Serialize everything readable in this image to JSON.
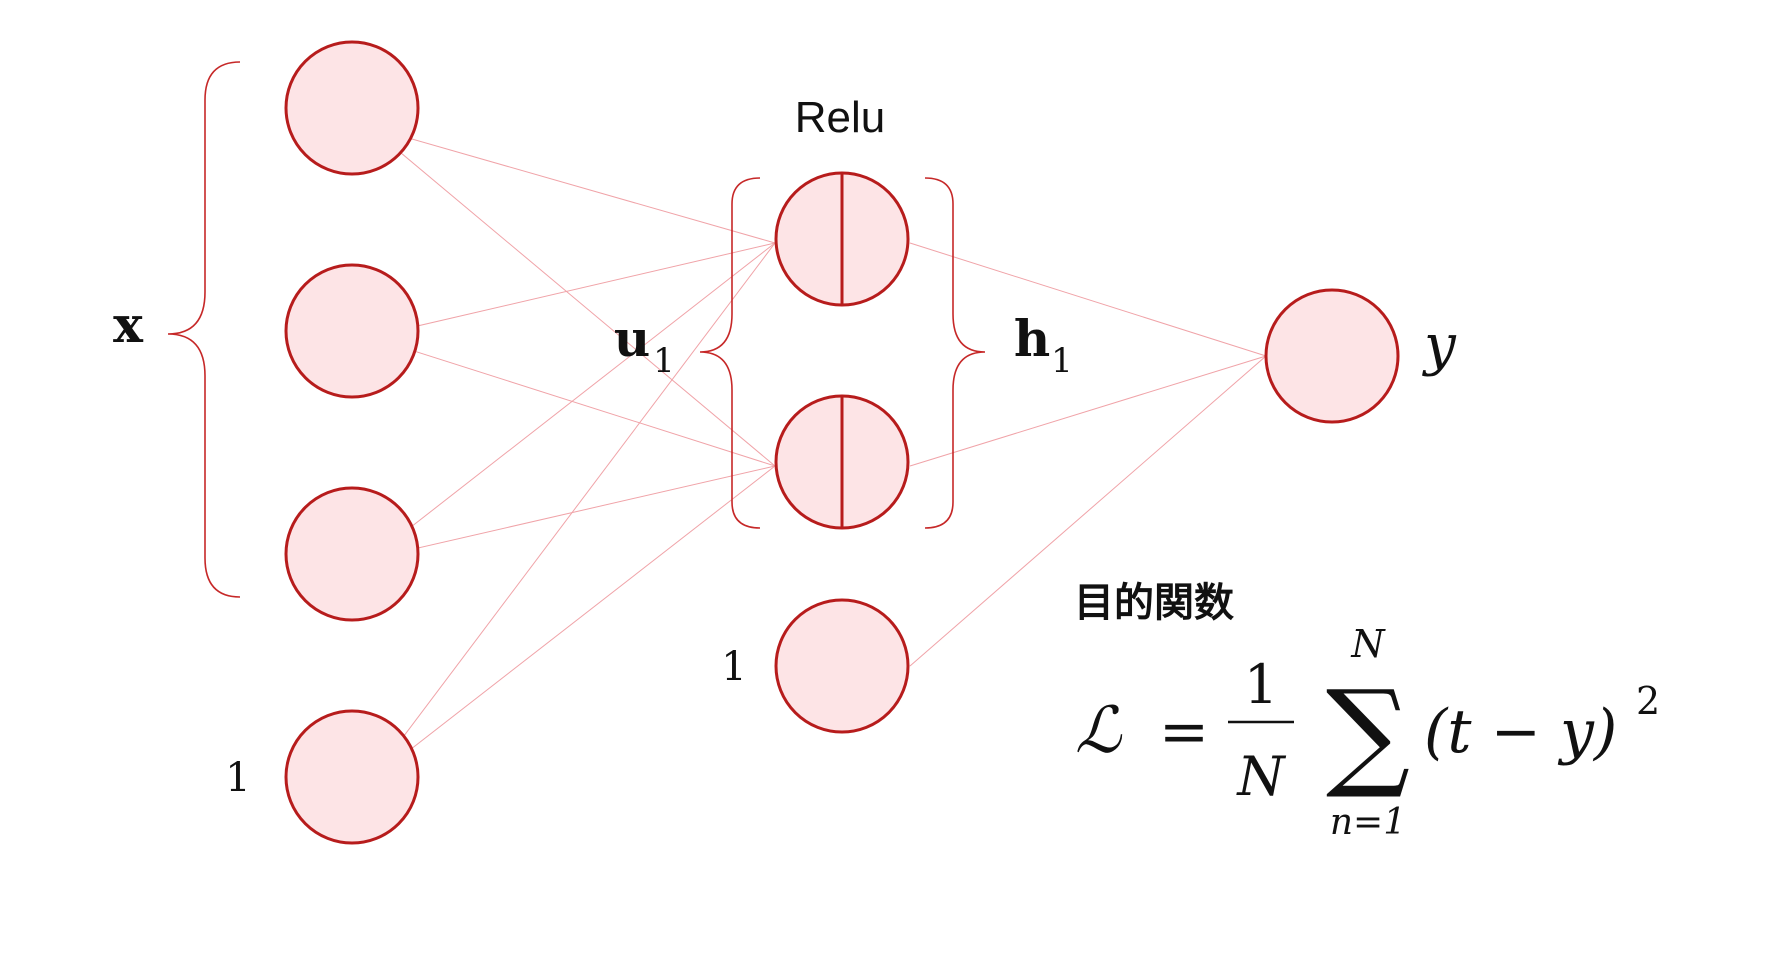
{
  "colors": {
    "node_fill": "#fde4e6",
    "node_stroke": "#b71c1c",
    "edge": "#f0a3a8",
    "brace": "#c62828"
  },
  "labels": {
    "activation": "Relu",
    "input_vector": "x",
    "pre_activation": "u",
    "pre_activation_subscript": "1",
    "hidden_vector": "h",
    "hidden_subscript": "1",
    "output": "y",
    "bias_input": "1",
    "bias_hidden": "1"
  },
  "objective": {
    "heading": "目的関数",
    "lhs": "ℒ",
    "equals": "=",
    "frac_numerator": "1",
    "frac_denominator": "N",
    "sum_symbol": "∑",
    "sum_upper": "N",
    "sum_lower": "n=1",
    "body": "(t − y)",
    "exponent": "2"
  },
  "network": {
    "layers": [
      {
        "name": "input",
        "neurons": 3,
        "bias": true
      },
      {
        "name": "hidden",
        "neurons": 2,
        "bias": true,
        "activation": "Relu"
      },
      {
        "name": "output",
        "neurons": 1,
        "bias": false
      }
    ]
  }
}
